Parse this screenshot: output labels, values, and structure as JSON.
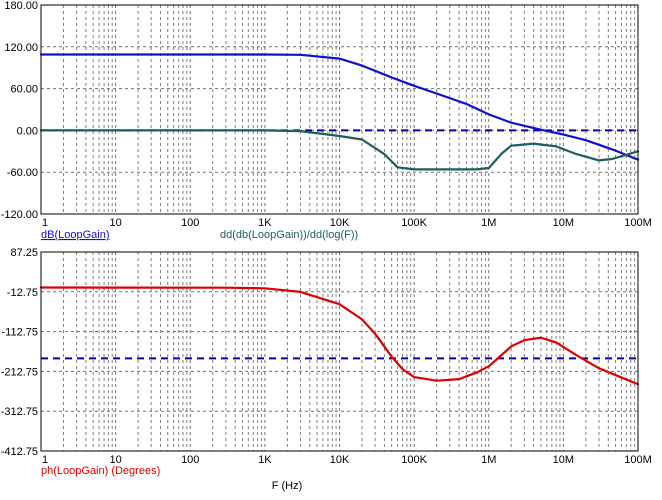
{
  "colors": {
    "db_trace": "#1010cc",
    "deriv_trace": "#1b5e5e",
    "phase_trace": "#dd0000",
    "reference": "#0000aa",
    "db_label": "#1010cc",
    "deriv_label": "#1b5e5e",
    "phase_label": "#dd0000"
  },
  "chart_data": [
    {
      "type": "line",
      "x_scale": "log",
      "xlim": [
        1,
        100000000
      ],
      "ylim": [
        -120,
        180
      ],
      "yticks": [
        "180.00",
        "120.00",
        "60.00",
        "0.00",
        "-60.00",
        "-120.00"
      ],
      "xticks": [
        "1",
        "10",
        "100",
        "1K",
        "10K",
        "100K",
        "1M",
        "10M",
        "100M"
      ],
      "grid": true,
      "reference_line": 0,
      "series": [
        {
          "name": "dB(LoopGain)",
          "color_key": "db_trace",
          "x": [
            1,
            1000,
            3000,
            10000,
            20000,
            50000,
            100000,
            200000,
            500000,
            1000000,
            2000000,
            5000000,
            10000000,
            20000000,
            50000000,
            100000000
          ],
          "y": [
            109,
            109,
            108.5,
            103,
            93,
            76,
            64,
            53,
            38,
            23,
            11,
            1,
            -6,
            -14,
            -29,
            -42
          ]
        },
        {
          "name": "dd(db(LoopGain))/dd(log(F))",
          "color_key": "deriv_trace",
          "x": [
            1,
            1000,
            3000,
            10000,
            20000,
            40000,
            60000,
            100000,
            300000,
            700000,
            1000000,
            1500000,
            2000000,
            4000000,
            8000000,
            15000000,
            30000000,
            45000000,
            70000000,
            100000000
          ],
          "y": [
            0,
            0,
            -1,
            -8,
            -13,
            -34,
            -53,
            -56,
            -56,
            -56,
            -54,
            -33,
            -22,
            -19,
            -23,
            -34,
            -43,
            -41,
            -35,
            -30
          ]
        }
      ]
    },
    {
      "type": "line",
      "x_scale": "log",
      "xlim": [
        1,
        100000000
      ],
      "ylim": [
        -412.75,
        87.25
      ],
      "yticks": [
        "87.25",
        "-12.75",
        "-112.75",
        "-212.75",
        "-312.75",
        "-412.75"
      ],
      "xticks": [
        "1",
        "10",
        "100",
        "1K",
        "10K",
        "100K",
        "1M",
        "10M",
        "100M"
      ],
      "xlabel": "F (Hz)",
      "grid": true,
      "reference_line": -180,
      "series": [
        {
          "name": "ph(LoopGain) (Degrees)",
          "color_key": "phase_trace",
          "x": [
            1,
            300,
            1000,
            3000,
            10000,
            20000,
            30000,
            50000,
            70000,
            100000,
            200000,
            400000,
            700000,
            1000000,
            2000000,
            3000000,
            5000000,
            8000000,
            15000000,
            30000000,
            100000000
          ],
          "y": [
            -2,
            -2.5,
            -4,
            -13,
            -44,
            -82,
            -118,
            -176,
            -207,
            -227,
            -236,
            -232,
            -215,
            -200,
            -150,
            -134,
            -128,
            -140,
            -172,
            -205,
            -245
          ]
        }
      ]
    }
  ]
}
